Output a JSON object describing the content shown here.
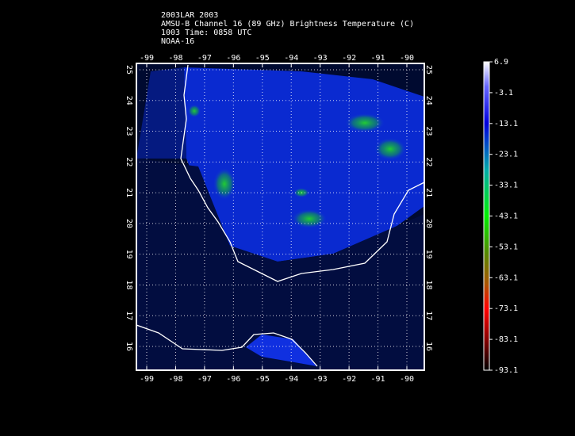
{
  "header": {
    "lines": [
      "2003LAR 2003",
      "AMSU-B Channel 16 (89 GHz) Brightness Temperature (C)",
      "1003 Time: 0858 UTC",
      "NOAA-16"
    ]
  },
  "map": {
    "lon_ticks": [
      -99,
      -98,
      -97,
      -96,
      -95,
      -94,
      -93,
      -92,
      -91,
      -90
    ],
    "lat_ticks": [
      25,
      24,
      23,
      22,
      21,
      20,
      19,
      18,
      17,
      16
    ]
  },
  "colorbar": {
    "labels": [
      6.9,
      -3.1,
      -13.1,
      -23.1,
      -33.1,
      -43.1,
      -53.1,
      -63.1,
      -73.1,
      -83.1,
      -93.1
    ]
  }
}
